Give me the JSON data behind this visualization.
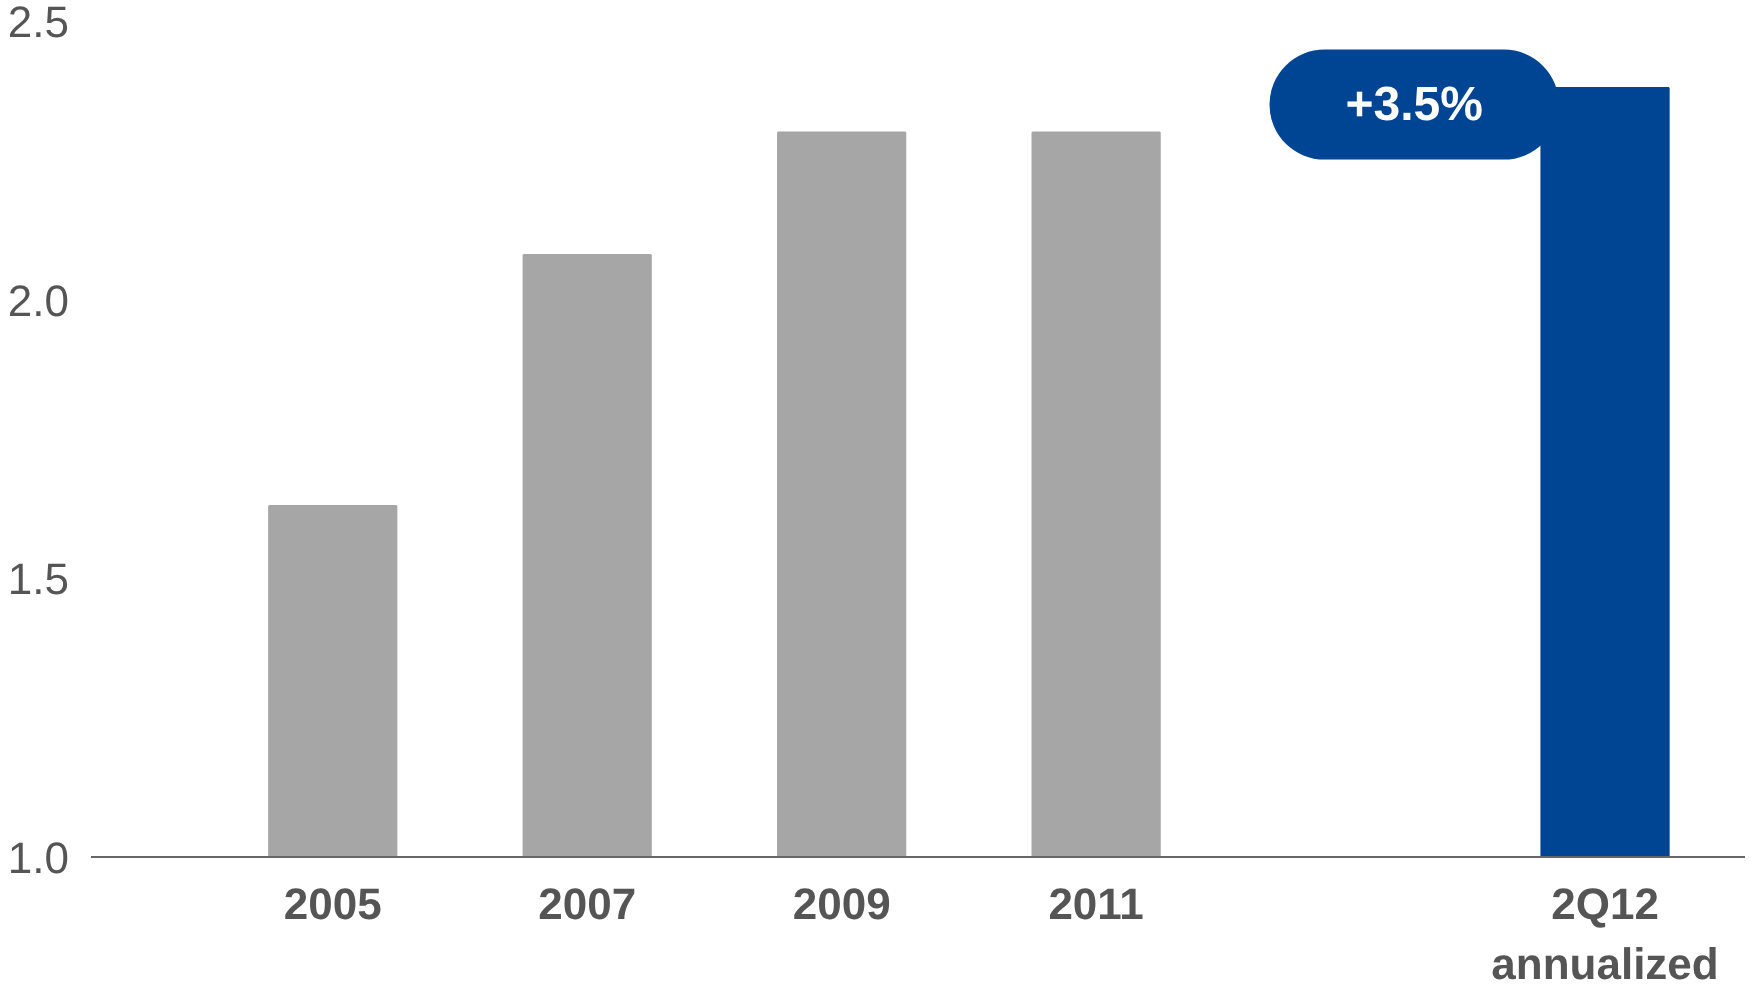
{
  "chart_data": {
    "type": "bar",
    "categories": [
      "2005",
      "2007",
      "2009",
      "2011",
      null,
      "2Q12\nannualized"
    ],
    "values": [
      1.63,
      2.08,
      2.3,
      2.3,
      null,
      2.38
    ],
    "colors": [
      "#a6a6a6",
      "#a6a6a6",
      "#a6a6a6",
      "#a6a6a6",
      "#a6a6a6",
      "#004494"
    ],
    "ylim": [
      1.0,
      2.5
    ],
    "yticks": [
      {
        "value": 1.0,
        "label": "1.0"
      },
      {
        "value": 1.5,
        "label": "1.5"
      },
      {
        "value": 2.0,
        "label": "2.0"
      },
      {
        "value": 2.5,
        "label": "2.5"
      }
    ],
    "annotations": [
      "+3.5%"
    ],
    "grid": false
  }
}
